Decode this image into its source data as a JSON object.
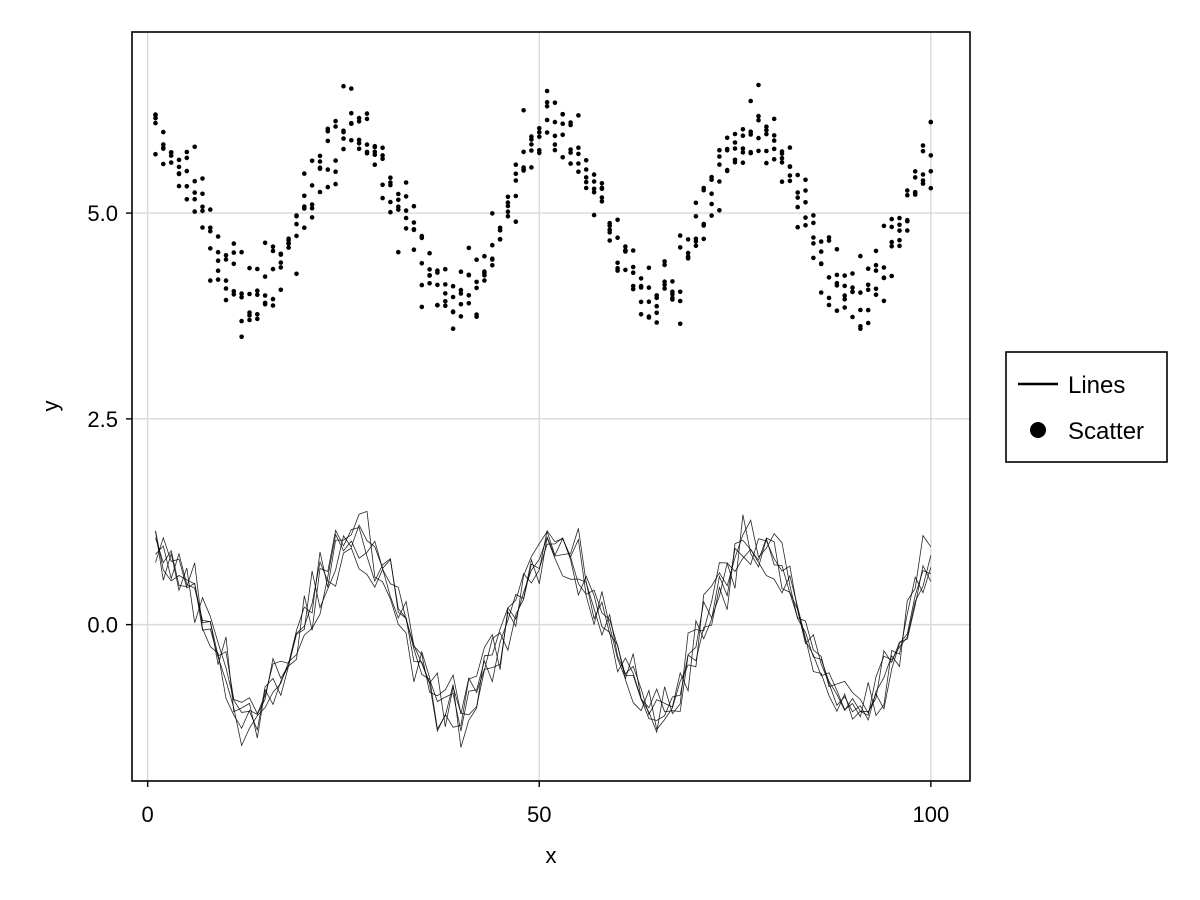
{
  "chart_data": {
    "type": "line+scatter",
    "xlabel": "x",
    "ylabel": "y",
    "xlim": [
      -2,
      105
    ],
    "ylim": [
      -1.9,
      7.2
    ],
    "xticks": [
      0,
      50,
      100
    ],
    "xtick_labels": [
      "0",
      "50",
      "100"
    ],
    "yticks": [
      0.0,
      2.5,
      5.0
    ],
    "ytick_labels": [
      "0.0",
      "2.5",
      "5.0"
    ],
    "grid": true,
    "legend": {
      "placement": "right",
      "entries": [
        {
          "label": "Lines",
          "marker": "line"
        },
        {
          "label": "Scatter",
          "marker": "circle"
        }
      ]
    },
    "line_series": {
      "count": 5,
      "x": [
        1,
        2,
        3,
        4,
        5,
        6,
        7,
        8,
        9,
        10,
        11,
        12,
        13,
        14,
        15,
        16,
        17,
        18,
        19,
        20,
        21,
        22,
        23,
        24,
        25,
        26,
        27,
        28,
        29,
        30,
        31,
        32,
        33,
        34,
        35,
        36,
        37,
        38,
        39,
        40,
        41,
        42,
        43,
        44,
        45,
        46,
        47,
        48,
        49,
        50,
        51,
        52,
        53,
        54,
        55,
        56,
        57,
        58,
        59,
        60,
        61,
        62,
        63,
        64,
        65,
        66,
        67,
        68,
        69,
        70,
        71,
        72,
        73,
        74,
        75,
        76,
        77,
        78,
        79,
        80,
        81,
        82,
        83,
        84,
        85,
        86,
        87,
        88,
        89,
        90,
        91,
        92,
        93,
        94,
        95,
        96,
        97,
        98,
        99,
        100
      ],
      "underlying_mean": [
        0.95,
        0.81,
        0.68,
        0.59,
        0.54,
        0.41,
        0.12,
        -0.16,
        -0.41,
        -0.63,
        -0.83,
        -0.98,
        -1.02,
        -0.98,
        -0.9,
        -0.8,
        -0.65,
        -0.47,
        -0.25,
        -0.01,
        0.23,
        0.46,
        0.66,
        0.83,
        0.97,
        1.02,
        0.99,
        0.9,
        0.76,
        0.59,
        0.39,
        0.17,
        -0.07,
        -0.31,
        -0.53,
        -0.72,
        -0.88,
        -0.98,
        -1.03,
        -1.0,
        -0.92,
        -0.79,
        -0.6,
        -0.4,
        -0.17,
        0.07,
        0.31,
        0.54,
        0.74,
        0.89,
        0.99,
        1.02,
        0.97,
        0.86,
        0.71,
        0.52,
        0.31,
        0.08,
        -0.16,
        -0.4,
        -0.61,
        -0.79,
        -0.92,
        -1.0,
        -1.02,
        -0.97,
        -0.86,
        -0.71,
        -0.51,
        -0.29,
        -0.05,
        0.19,
        0.42,
        0.62,
        0.8,
        0.93,
        1.0,
        1.01,
        0.95,
        0.83,
        0.67,
        0.47,
        0.24,
        0.0,
        -0.24,
        -0.47,
        -0.67,
        -0.83,
        -0.95,
        -1.01,
        -1.0,
        -0.93,
        -0.8,
        -0.62,
        -0.42,
        -0.19,
        0.05,
        0.29,
        0.51,
        0.71
      ]
    },
    "scatter_series": {
      "offset": 5.0,
      "points_per_x": 5,
      "x_range": [
        1,
        100
      ]
    }
  }
}
